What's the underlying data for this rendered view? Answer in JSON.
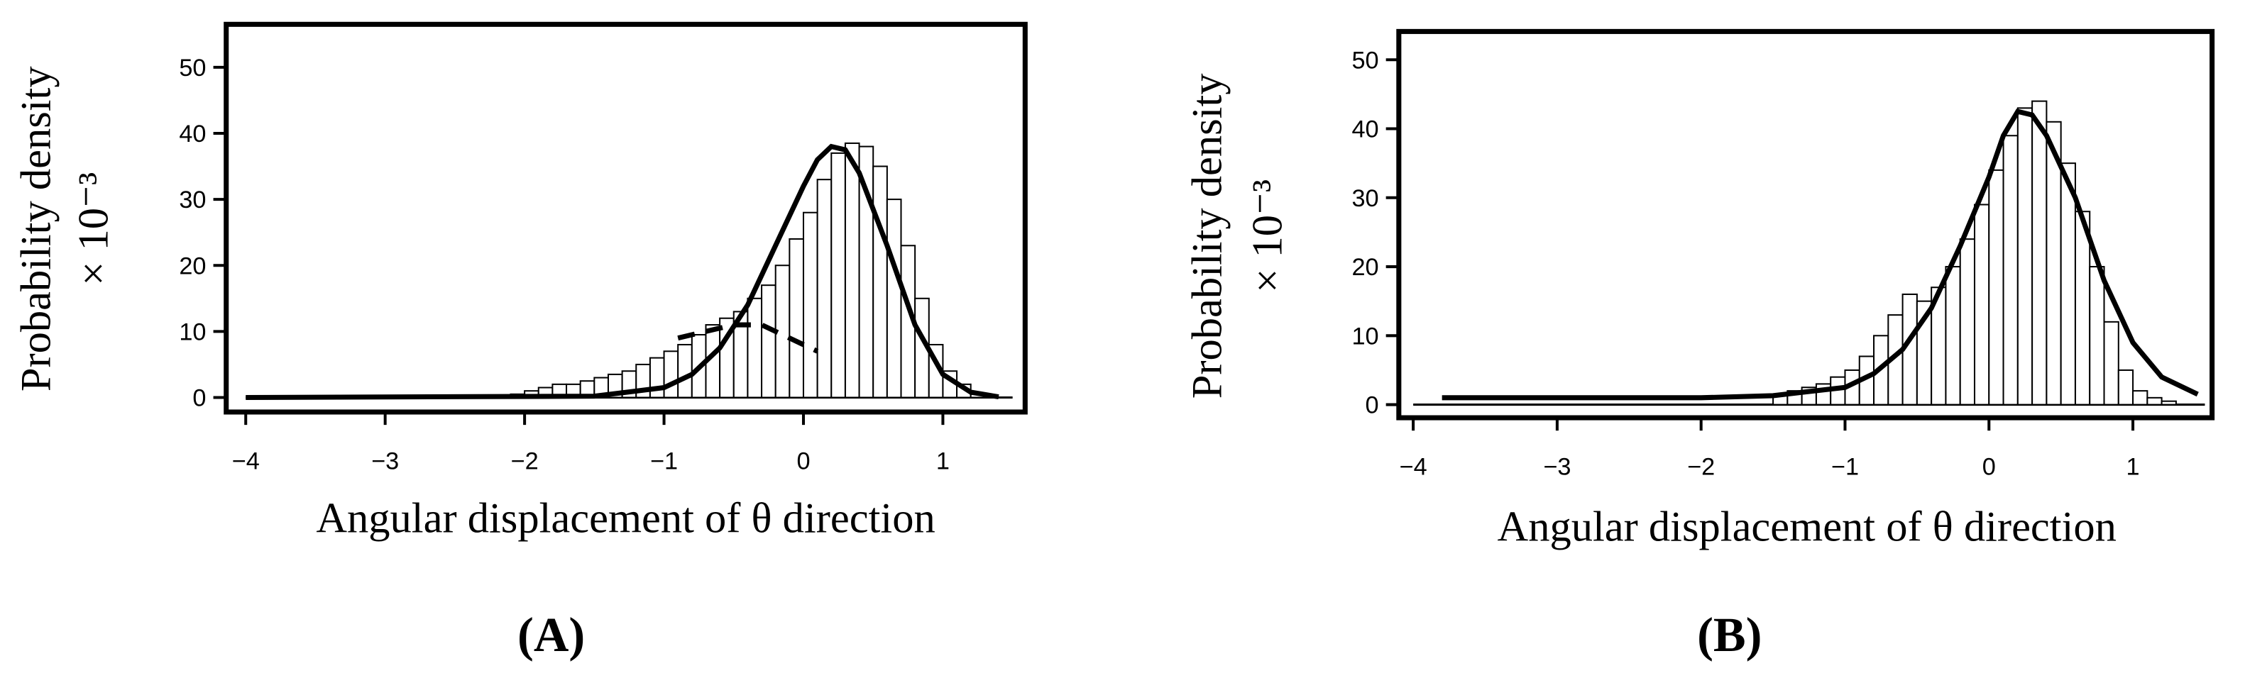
{
  "chart_data": [
    {
      "type": "histogram",
      "panel_label": "(A)",
      "x_label": "Angular displacement of θ direction",
      "y_label": "Probability density",
      "y_label_unit": "× 10⁻³",
      "xlim": [
        -4.14,
        1.59
      ],
      "ylim": [
        -2.2,
        56.5
      ],
      "xticks": [
        {
          "value": -4,
          "label": "−4"
        },
        {
          "value": -3,
          "label": "−3"
        },
        {
          "value": -2,
          "label": "−2"
        },
        {
          "value": -1,
          "label": "−1"
        },
        0,
        1
      ],
      "yticks": [
        0,
        10,
        20,
        30,
        40,
        50
      ],
      "bar_color": "#ffffff",
      "bins": [
        -2.1,
        -2.0,
        -1.9,
        -1.8,
        -1.7,
        -1.6,
        -1.5,
        -1.4,
        -1.3,
        -1.2,
        -1.1,
        -1.0,
        -0.9,
        -0.8,
        -0.7,
        -0.6,
        -0.5,
        -0.4,
        -0.3,
        -0.2,
        -0.1,
        0.0,
        0.1,
        0.2,
        0.3,
        0.4,
        0.5,
        0.6,
        0.7,
        0.8,
        0.9,
        1.0,
        1.1,
        1.2,
        1.3
      ],
      "counts": [
        0.5,
        1,
        1.5,
        2,
        2,
        2.5,
        3,
        3.5,
        4,
        5,
        6,
        7,
        8,
        9.5,
        11,
        12,
        13,
        15,
        17,
        20,
        24,
        28,
        33,
        37,
        38.5,
        38,
        35,
        30,
        23,
        15,
        8,
        4,
        2,
        0.5
      ],
      "lines": [
        {
          "color": "#000000",
          "linestyle": "solid",
          "x": [
            -4,
            -1.5,
            -1,
            -0.8,
            -0.6,
            -0.4,
            -0.2,
            0,
            0.1,
            0.2,
            0.3,
            0.4,
            0.6,
            0.8,
            1.0,
            1.2,
            1.4
          ],
          "values": [
            0,
            0.2,
            1.5,
            3.5,
            7.5,
            14,
            23,
            32,
            36,
            38,
            37.5,
            34,
            23,
            11,
            3.5,
            0.8,
            0.1
          ]
        },
        {
          "color": "#000000",
          "linestyle": "dashed",
          "x": [
            -0.9,
            -0.7,
            -0.5,
            -0.3,
            -0.1,
            0.1
          ],
          "values": [
            9,
            10,
            11,
            11,
            9,
            7
          ]
        }
      ]
    },
    {
      "type": "histogram",
      "panel_label": "(B)",
      "x_label": "Angular displacement of θ direction",
      "y_label": "Probability density",
      "y_label_unit": "× 10⁻³",
      "xlim": [
        -4.1,
        1.55
      ],
      "ylim": [
        -1.9,
        54.1
      ],
      "xticks": [
        {
          "value": -4,
          "label": "−4"
        },
        {
          "value": -3,
          "label": "−3"
        },
        {
          "value": -2,
          "label": "−2"
        },
        {
          "value": -1,
          "label": "−1"
        },
        0,
        1
      ],
      "yticks": [
        0,
        10,
        20,
        30,
        40,
        50
      ],
      "bar_color": "#ffffff",
      "bins": [
        -1.5,
        -1.4,
        -1.3,
        -1.2,
        -1.1,
        -1.0,
        -0.9,
        -0.8,
        -0.7,
        -0.6,
        -0.5,
        -0.4,
        -0.3,
        -0.2,
        -0.1,
        0.0,
        0.1,
        0.2,
        0.3,
        0.4,
        0.5,
        0.6,
        0.7,
        0.8,
        0.9,
        1.0,
        1.1,
        1.2,
        1.3
      ],
      "counts": [
        1.5,
        2,
        2.5,
        3,
        4,
        5,
        7,
        10,
        13,
        16,
        15,
        17,
        20,
        24,
        29,
        34,
        39,
        43,
        44,
        41,
        35,
        28,
        20,
        12,
        5,
        2,
        1,
        0.5
      ],
      "lines": [
        {
          "color": "#000000",
          "linestyle": "solid",
          "x": [
            -3.8,
            -2,
            -1.5,
            -1,
            -0.8,
            -0.6,
            -0.4,
            -0.2,
            0,
            0.1,
            0.2,
            0.3,
            0.4,
            0.6,
            0.8,
            1.0,
            1.2,
            1.45
          ],
          "values": [
            1,
            1,
            1.3,
            2.5,
            4.5,
            8,
            14,
            23,
            33,
            39,
            42.5,
            42,
            39,
            30,
            18,
            9,
            4,
            1.5
          ]
        }
      ]
    }
  ]
}
